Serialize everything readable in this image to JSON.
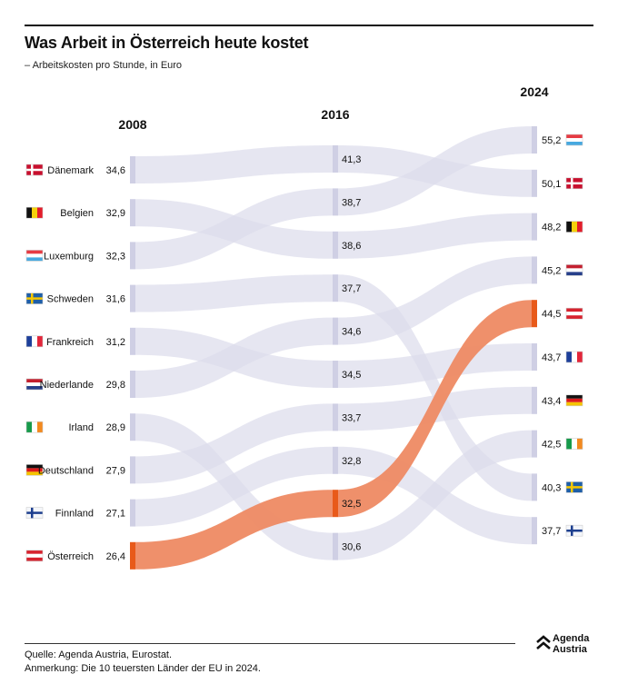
{
  "title": "Was Arbeit in Österreich heute kostet",
  "subtitle": "– Arbeitskosten pro Stunde, in Euro",
  "footer": {
    "source": "Quelle: Agenda Austria, Eurostat.",
    "note": "Anmerkung: Die 10 teuersten Länder der EU in 2024."
  },
  "logo": {
    "line1": "Agenda",
    "line2": "Austria"
  },
  "colors": {
    "flow": "#dcdcec",
    "bar": "#cfcfe4",
    "highlight": "#ee8a63",
    "highlight_bar": "#e85a1a"
  },
  "chart_data": {
    "type": "slope",
    "title": "Was Arbeit in Österreich heute kostet",
    "unit": "Euro pro Stunde",
    "years": [
      "2008",
      "2016",
      "2024"
    ],
    "highlight": "at",
    "series": [
      {
        "code": "dk",
        "name": "Dänemark",
        "values": [
          34.6,
          41.3,
          50.1
        ],
        "labels": [
          "34,6",
          "41,3",
          "50,1"
        ]
      },
      {
        "code": "be",
        "name": "Belgien",
        "values": [
          32.9,
          38.6,
          48.2
        ],
        "labels": [
          "32,9",
          "38,6",
          "48,2"
        ]
      },
      {
        "code": "lu",
        "name": "Luxemburg",
        "values": [
          32.3,
          38.7,
          55.2
        ],
        "labels": [
          "32,3",
          "38,7",
          "55,2"
        ]
      },
      {
        "code": "se",
        "name": "Schweden",
        "values": [
          31.6,
          37.7,
          40.3
        ],
        "labels": [
          "31,6",
          "37,7",
          "40,3"
        ]
      },
      {
        "code": "fr",
        "name": "Frankreich",
        "values": [
          31.2,
          34.5,
          43.7
        ],
        "labels": [
          "31,2",
          "34,5",
          "43,7"
        ]
      },
      {
        "code": "nl",
        "name": "Niederlande",
        "values": [
          29.8,
          34.6,
          45.2
        ],
        "labels": [
          "29,8",
          "34,6",
          "45,2"
        ]
      },
      {
        "code": "ie",
        "name": "Irland",
        "values": [
          28.9,
          30.6,
          42.5
        ],
        "labels": [
          "28,9",
          "30,6",
          "42,5"
        ]
      },
      {
        "code": "de",
        "name": "Deutschland",
        "values": [
          27.9,
          33.7,
          43.4
        ],
        "labels": [
          "27,9",
          "33,7",
          "43,4"
        ]
      },
      {
        "code": "fi",
        "name": "Finnland",
        "values": [
          27.1,
          32.8,
          37.7
        ],
        "labels": [
          "27,1",
          "32,8",
          "37,7"
        ]
      },
      {
        "code": "at",
        "name": "Österreich",
        "values": [
          26.4,
          32.5,
          44.5
        ],
        "labels": [
          "26,4",
          "32,5",
          "44,5"
        ]
      }
    ]
  }
}
